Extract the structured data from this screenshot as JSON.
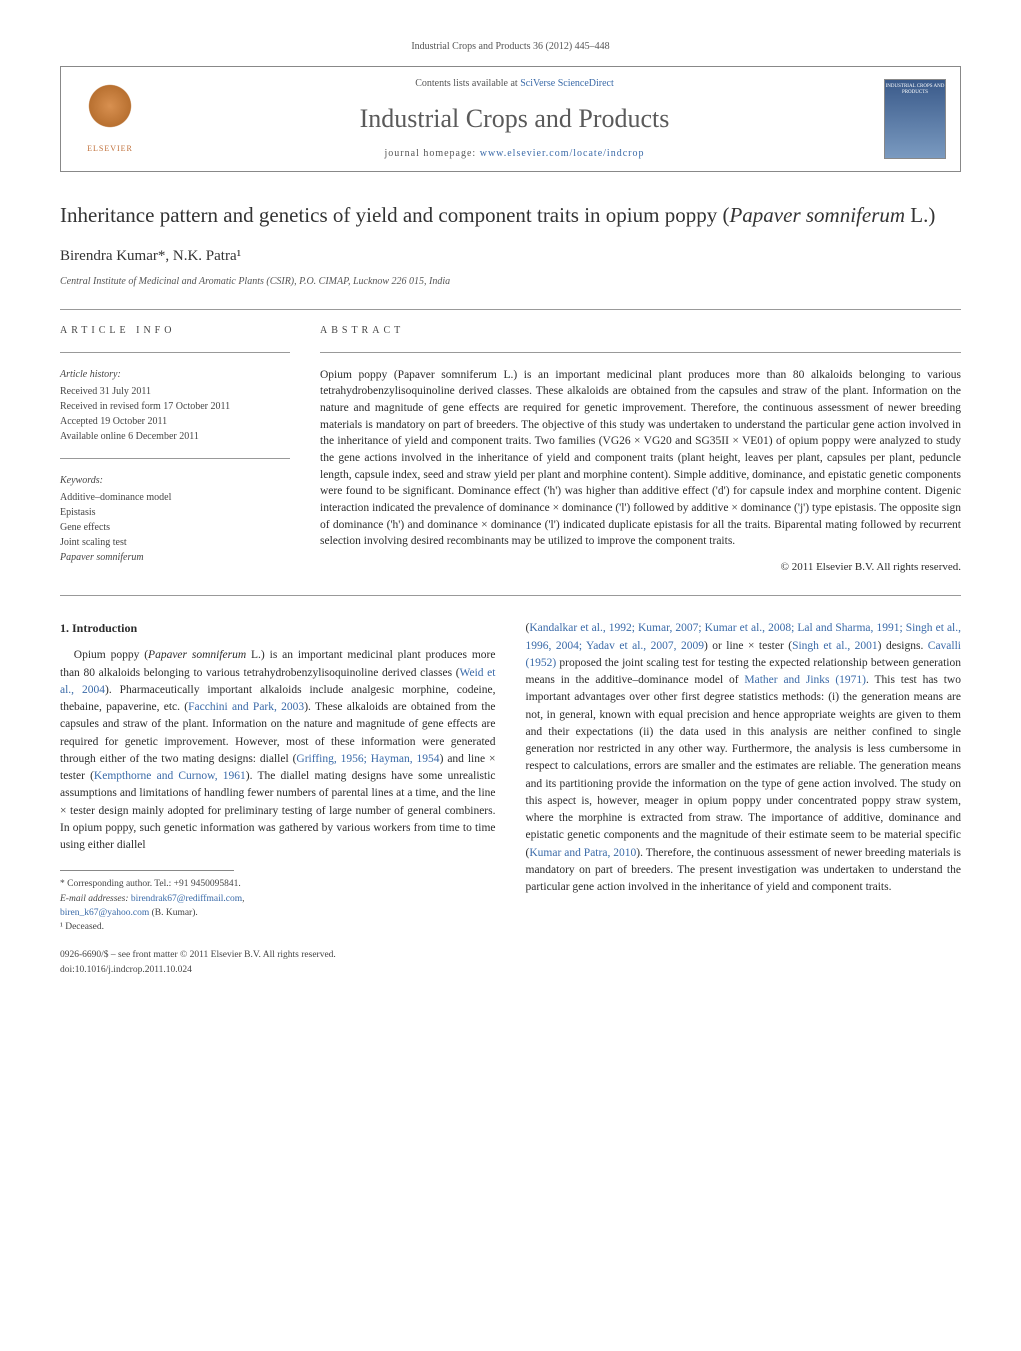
{
  "header": {
    "journal_ref": "Industrial Crops and Products 36 (2012) 445–448",
    "contents_prefix": "Contents lists available at ",
    "contents_link": "SciVerse ScienceDirect",
    "journal_title": "Industrial Crops and Products",
    "homepage_prefix": "journal homepage: ",
    "homepage_link": "www.elsevier.com/locate/indcrop",
    "elsevier_label": "ELSEVIER",
    "cover_label": "INDUSTRIAL CROPS AND PRODUCTS"
  },
  "article": {
    "title_pre": "Inheritance pattern and genetics of yield and component traits in opium poppy (",
    "title_species": "Papaver somniferum",
    "title_post": " L.)",
    "authors": "Birendra Kumar*, N.K. Patra¹",
    "affiliation": "Central Institute of Medicinal and Aromatic Plants (CSIR), P.O. CIMAP, Lucknow 226 015, India"
  },
  "info": {
    "heading": "article info",
    "history_label": "Article history:",
    "history": [
      "Received 31 July 2011",
      "Received in revised form 17 October 2011",
      "Accepted 19 October 2011",
      "Available online 6 December 2011"
    ],
    "keywords_label": "Keywords:",
    "keywords": [
      "Additive–dominance model",
      "Epistasis",
      "Gene effects",
      "Joint scaling test",
      "Papaver somniferum"
    ]
  },
  "abstract": {
    "heading": "abstract",
    "text": "Opium poppy (Papaver somniferum L.) is an important medicinal plant produces more than 80 alkaloids belonging to various tetrahydrobenzylisoquinoline derived classes. These alkaloids are obtained from the capsules and straw of the plant. Information on the nature and magnitude of gene effects are required for genetic improvement. Therefore, the continuous assessment of newer breeding materials is mandatory on part of breeders. The objective of this study was undertaken to understand the particular gene action involved in the inheritance of yield and component traits. Two families (VG26 × VG20 and SG35II × VE01) of opium poppy were analyzed to study the gene actions involved in the inheritance of yield and component traits (plant height, leaves per plant, capsules per plant, peduncle length, capsule index, seed and straw yield per plant and morphine content). Simple additive, dominance, and epistatic genetic components were found to be significant. Dominance effect ('h') was higher than additive effect ('d') for capsule index and morphine content. Digenic interaction indicated the prevalence of dominance × dominance ('l') followed by additive × dominance ('j') type epistasis. The opposite sign of dominance ('h') and dominance × dominance ('l') indicated duplicate epistasis for all the traits. Biparental mating followed by recurrent selection involving desired recombinants may be utilized to improve the component traits.",
    "copyright": "© 2011 Elsevier B.V. All rights reserved."
  },
  "body": {
    "section1_heading": "1. Introduction",
    "col1_p1a": "Opium poppy (",
    "col1_p1_species": "Papaver somniferum",
    "col1_p1b": " L.) is an important medicinal plant produces more than 80 alkaloids belonging to various tetrahydrobenzylisoquinoline derived classes (",
    "col1_cite1": "Weid et al., 2004",
    "col1_p1c": "). Pharmaceutically important alkaloids include analgesic morphine, codeine, thebaine, papaverine, etc. (",
    "col1_cite2": "Facchini and Park, 2003",
    "col1_p1d": "). These alkaloids are obtained from the capsules and straw of the plant. Information on the nature and magnitude of gene effects are required for genetic improvement. However, most of these information were generated through either of the two mating designs: diallel (",
    "col1_cite3": "Griffing, 1956; Hayman, 1954",
    "col1_p1e": ") and line × tester (",
    "col1_cite4": "Kempthorne and Curnow, 1961",
    "col1_p1f": "). The diallel mating designs have some unrealistic assumptions and limitations of handling fewer numbers of parental lines at a time, and the line × tester design mainly adopted for preliminary testing of large number of general combiners. In opium poppy, such genetic information was gathered by various workers from time to time using either diallel",
    "col2_p1a": "(",
    "col2_cite1": "Kandalkar et al., 1992; Kumar, 2007; Kumar et al., 2008; Lal and Sharma, 1991; Singh et al., 1996, 2004; Yadav et al., 2007, 2009",
    "col2_p1b": ") or line × tester (",
    "col2_cite2": "Singh et al., 2001",
    "col2_p1c": ") designs. ",
    "col2_cite3": "Cavalli (1952)",
    "col2_p1d": " proposed the joint scaling test for testing the expected relationship between generation means in the additive–dominance model of ",
    "col2_cite4": "Mather and Jinks (1971)",
    "col2_p1e": ". This test has two important advantages over other first degree statistics methods: (i) the generation means are not, in general, known with equal precision and hence appropriate weights are given to them and their expectations (ii) the data used in this analysis are neither confined to single generation nor restricted in any other way. Furthermore, the analysis is less cumbersome in respect to calculations, errors are smaller and the estimates are reliable. The generation means and its partitioning provide the information on the type of gene action involved. The study on this aspect is, however, meager in opium poppy under concentrated poppy straw system, where the morphine is extracted from straw. The importance of additive, dominance and epistatic genetic components and the magnitude of their estimate seem to be material specific (",
    "col2_cite5": "Kumar and Patra, 2010",
    "col2_p1f": "). Therefore, the continuous assessment of newer breeding materials is mandatory on part of breeders. The present investigation was undertaken to understand the particular gene action involved in the inheritance of yield and component traits."
  },
  "footnotes": {
    "corr": "* Corresponding author. Tel.: +91 9450095841.",
    "email_label": "E-mail addresses: ",
    "email1": "birendrak67@rediffmail.com",
    "email_sep": ", ",
    "email2": "biren_k67@yahoo.com",
    "email_post": " (B. Kumar).",
    "deceased": "¹ Deceased."
  },
  "bottom": {
    "line1": "0926-6690/$ – see front matter © 2011 Elsevier B.V. All rights reserved.",
    "line2": "doi:10.1016/j.indcrop.2011.10.024"
  },
  "colors": {
    "link": "#3a6aa8",
    "text": "#2b2b2b",
    "muted": "#555555",
    "rule": "#999999"
  }
}
